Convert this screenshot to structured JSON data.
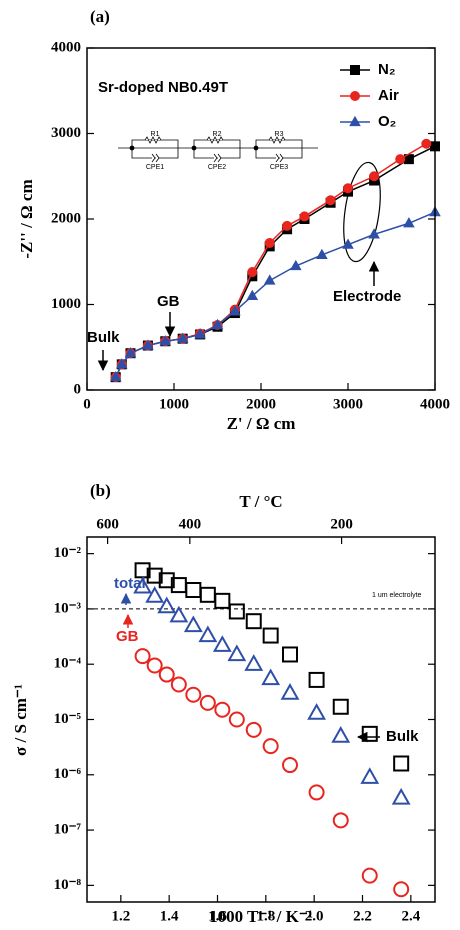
{
  "chart_data": [
    {
      "type": "scatter",
      "panel": "(a)",
      "title": "Sr-doped NB0.49T",
      "xlabel": "Z' / Ω cm",
      "ylabel": "-Z'' / Ω cm",
      "xlim": [
        0,
        4000
      ],
      "ylim": [
        0,
        4000
      ],
      "xticks": [
        0,
        1000,
        2000,
        3000,
        4000
      ],
      "yticks": [
        0,
        1000,
        2000,
        3000,
        4000
      ],
      "log_y": false,
      "legend": "upper right",
      "connect": true,
      "series": [
        {
          "name": "N₂",
          "color": "#000000",
          "marker": "square",
          "filled": true,
          "x": [
            330,
            400,
            500,
            700,
            900,
            1100,
            1300,
            1500,
            1700,
            1900,
            2100,
            2300,
            2500,
            2800,
            3000,
            3300,
            3700,
            4000
          ],
          "values": [
            150,
            300,
            430,
            520,
            570,
            600,
            650,
            740,
            900,
            1330,
            1680,
            1880,
            2000,
            2190,
            2320,
            2450,
            2700,
            2850
          ]
        },
        {
          "name": "Air",
          "color": "#e8251f",
          "marker": "circle",
          "filled": true,
          "x": [
            330,
            400,
            500,
            700,
            900,
            1100,
            1300,
            1500,
            1700,
            1900,
            2100,
            2300,
            2500,
            2800,
            3000,
            3300,
            3600,
            3900
          ],
          "values": [
            150,
            300,
            430,
            520,
            570,
            600,
            660,
            760,
            940,
            1380,
            1720,
            1920,
            2030,
            2220,
            2360,
            2500,
            2700,
            2880
          ]
        },
        {
          "name": "O₂",
          "color": "#2e4fa8",
          "marker": "triangle",
          "filled": true,
          "x": [
            330,
            400,
            500,
            700,
            900,
            1100,
            1300,
            1500,
            1700,
            1900,
            2100,
            2400,
            2700,
            3000,
            3300,
            3700,
            4000
          ],
          "values": [
            150,
            300,
            430,
            520,
            570,
            600,
            650,
            760,
            920,
            1100,
            1280,
            1450,
            1580,
            1700,
            1820,
            1950,
            2080
          ]
        }
      ],
      "annotations": [
        "Bulk",
        "GB",
        "Electrode"
      ],
      "circuit": [
        "R1",
        "CPE1",
        "R2",
        "CPE2",
        "R3",
        "CPE3"
      ]
    },
    {
      "type": "scatter",
      "panel": "(b)",
      "xlabel": "1000 T⁻¹ / K⁻¹",
      "ylabel": "σ / S cm⁻¹",
      "x2label": "T / °C",
      "xlim": [
        1.06,
        2.5
      ],
      "ylim": [
        5e-09,
        0.02
      ],
      "xticks": [
        1.2,
        1.4,
        1.6,
        1.8,
        {
          "value": 2,
          "label": "2.0"
        },
        2.2,
        2.4
      ],
      "x2ticks": [
        600,
        400,
        200
      ],
      "yticks": [
        {
          "value": 1e-08,
          "label": "10⁻⁸"
        },
        {
          "value": 1e-07,
          "label": "10⁻⁷"
        },
        {
          "value": 1e-06,
          "label": "10⁻⁶"
        },
        {
          "value": 1e-05,
          "label": "10⁻⁵"
        },
        {
          "value": 0.0001,
          "label": "10⁻⁴"
        },
        {
          "value": 0.001,
          "label": "10⁻³"
        },
        {
          "value": 0.01,
          "label": "10⁻²"
        }
      ],
      "log_y": true,
      "connect": false,
      "reference_line": {
        "value": 0.001,
        "label": "1 um electrolyte"
      },
      "series": [
        {
          "name": "Bulk",
          "color": "#000000",
          "marker": "square",
          "filled": false,
          "x": [
            1.29,
            1.34,
            1.39,
            1.44,
            1.5,
            1.56,
            1.62,
            1.68,
            1.75,
            1.82,
            1.9,
            2.01,
            2.11,
            2.23,
            2.36
          ],
          "values": [
            0.005,
            0.004,
            0.0033,
            0.0027,
            0.0022,
            0.0018,
            0.0014,
            0.0009,
            0.0006,
            0.00033,
            0.00015,
            5.2e-05,
            1.7e-05,
            5.5e-06,
            1.6e-06
          ]
        },
        {
          "name": "total",
          "color": "#2e4fa8",
          "marker": "triangle",
          "filled": false,
          "x": [
            1.29,
            1.34,
            1.39,
            1.44,
            1.5,
            1.56,
            1.62,
            1.68,
            1.75,
            1.82,
            1.9,
            2.01,
            2.11,
            2.23,
            2.36
          ],
          "values": [
            0.0025,
            0.0017,
            0.0011,
            0.00075,
            0.0005,
            0.00033,
            0.00022,
            0.00015,
            0.0001,
            5.5e-05,
            3e-05,
            1.3e-05,
            5e-06,
            9e-07,
            3.8e-07
          ]
        },
        {
          "name": "GB",
          "color": "#e8251f",
          "marker": "circle",
          "filled": false,
          "x": [
            1.29,
            1.34,
            1.39,
            1.44,
            1.5,
            1.56,
            1.62,
            1.68,
            1.75,
            1.82,
            1.9,
            2.01,
            2.11,
            2.23,
            2.36
          ],
          "values": [
            0.00014,
            9.5e-05,
            6.5e-05,
            4.3e-05,
            2.8e-05,
            2e-05,
            1.5e-05,
            1e-05,
            6.5e-06,
            3.3e-06,
            1.5e-06,
            4.8e-07,
            1.5e-07,
            1.5e-08,
            8.5e-09
          ]
        }
      ]
    }
  ]
}
